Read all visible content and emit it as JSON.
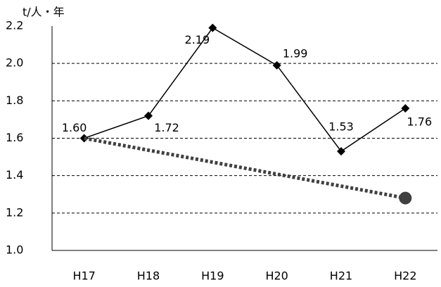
{
  "chart_data": {
    "type": "line",
    "y_label": "t/人・年",
    "categories": [
      "H17",
      "H18",
      "H19",
      "H20",
      "H21",
      "H22"
    ],
    "series": [
      {
        "color": "#000000",
        "marker": "diamond",
        "values": [
          1.6,
          1.72,
          2.19,
          1.99,
          1.53,
          1.76
        ],
        "value_labels": [
          "1.60",
          "1.72",
          "2.19",
          "1.99",
          "1.53",
          "1.76"
        ]
      },
      {
        "color": "#404040",
        "marker": "circle",
        "dotted": true,
        "connect_gaps": true,
        "values": [
          1.6,
          null,
          null,
          null,
          null,
          1.28
        ]
      }
    ],
    "ylim": [
      1.0,
      2.2
    ],
    "yticks": [
      {
        "value": 1.0,
        "label": "1.0"
      },
      1.2,
      1.4,
      1.6,
      1.8,
      {
        "value": 2.0,
        "label": "2.0"
      },
      2.2
    ],
    "grid": true
  }
}
